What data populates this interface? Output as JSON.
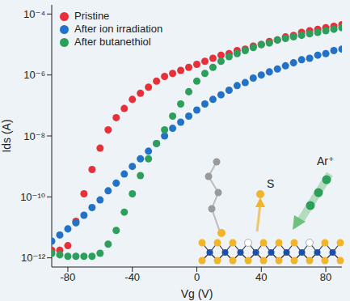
{
  "chart_data": {
    "type": "scatter",
    "x_label": "Vg (V)",
    "y_label": "Ids (A)",
    "log": "y",
    "grid": false,
    "legend": "upper left",
    "marker": "circle",
    "xlim": [
      -90,
      90
    ],
    "xticks": [
      -80,
      -40,
      0,
      40,
      80
    ],
    "ylim": [
      5e-13,
      0.0002
    ],
    "yticks": [
      {
        "value": 1e-12,
        "label": "10⁻¹²"
      },
      {
        "value": 1e-10,
        "label": "10⁻¹⁰"
      },
      {
        "value": 1e-08,
        "label": "10⁻⁸"
      },
      {
        "value": 1e-06,
        "label": "10⁻⁶"
      },
      {
        "value": 0.0001,
        "label": "10⁻⁴"
      }
    ],
    "x": [
      -90,
      -85,
      -80,
      -75,
      -70,
      -65,
      -60,
      -55,
      -50,
      -45,
      -40,
      -35,
      -30,
      -25,
      -20,
      -15,
      -10,
      -5,
      0,
      5,
      10,
      15,
      20,
      25,
      30,
      35,
      40,
      45,
      50,
      55,
      60,
      65,
      70,
      75,
      80,
      85,
      90
    ],
    "series": [
      {
        "name": "Pristine",
        "color": "#e8303a",
        "values": [
          1.78e-12,
          1.78e-12,
          2.51e-12,
          1.58e-11,
          1.26e-10,
          7.94e-10,
          3.98e-09,
          1.58e-08,
          3.98e-08,
          7.94e-08,
          1.58e-07,
          2.51e-07,
          3.98e-07,
          6.31e-07,
          8.91e-07,
          1.12e-06,
          1.41e-06,
          1.78e-06,
          2.24e-06,
          2.82e-06,
          3.55e-06,
          4.47e-06,
          5.01e-06,
          6.31e-06,
          7.08e-06,
          8.91e-06,
          1e-05,
          1.26e-05,
          1.41e-05,
          1.78e-05,
          2e-05,
          2.51e-05,
          2.82e-05,
          3.16e-05,
          3.55e-05,
          3.98e-05,
          4.47e-05
        ]
      },
      {
        "name": "After ion irradiation",
        "color": "#2272c8",
        "values": [
          3.55e-12,
          5.62e-12,
          8.91e-12,
          1.41e-11,
          2.51e-11,
          4.47e-11,
          7.94e-11,
          1.58e-10,
          2.82e-10,
          5.62e-10,
          1e-09,
          1.78e-09,
          3.16e-09,
          5.62e-09,
          1e-08,
          1.78e-08,
          2.82e-08,
          4.47e-08,
          7.08e-08,
          1.12e-07,
          1.58e-07,
          2.24e-07,
          3.16e-07,
          4.47e-07,
          5.62e-07,
          7.94e-07,
          1e-06,
          1.26e-06,
          1.58e-06,
          2e-06,
          2.51e-06,
          3.16e-06,
          3.55e-06,
          4.47e-06,
          5.01e-06,
          6.31e-06,
          7.08e-06
        ]
      },
      {
        "name": "After butanethiol",
        "color": "#2ca05a",
        "values": [
          1.41e-12,
          1.26e-12,
          1.12e-12,
          1.12e-12,
          1.12e-12,
          1.12e-12,
          1.41e-12,
          2.82e-12,
          7.94e-12,
          3.16e-11,
          1.26e-10,
          5.01e-10,
          1.78e-09,
          5.62e-09,
          1.58e-08,
          4.47e-08,
          1.12e-07,
          2.82e-07,
          6.31e-07,
          1.12e-06,
          1.78e-06,
          2.82e-06,
          3.98e-06,
          5.01e-06,
          6.31e-06,
          7.94e-06,
          1e-05,
          1.12e-05,
          1.41e-05,
          1.58e-05,
          1.78e-05,
          2e-05,
          2.24e-05,
          2.51e-05,
          2.82e-05,
          3.16e-05,
          3.55e-05
        ]
      }
    ],
    "annotations": [
      {
        "text": "S"
      },
      {
        "text": "Ar⁺"
      }
    ]
  }
}
